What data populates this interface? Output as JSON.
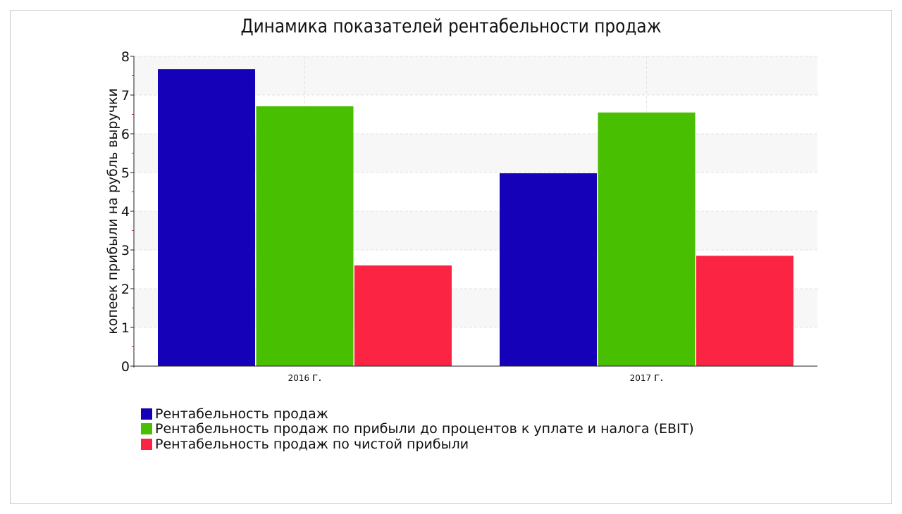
{
  "chart_data": {
    "type": "bar",
    "title": "Динамика показателей рентабельности продаж",
    "xlabel": "",
    "ylabel": "копеек прибыли на рубль выручки",
    "ylim": [
      0,
      8
    ],
    "yticks": [
      "0",
      "1",
      "2",
      "3",
      "4",
      "5",
      "6",
      "7",
      "8"
    ],
    "categories": [
      {
        "year": "2016",
        "suffix": "г."
      },
      {
        "year": "2017",
        "suffix": "г."
      }
    ],
    "series": [
      {
        "name": "Рентабельность продаж",
        "color": "#1401b8",
        "values": [
          7.67,
          4.98
        ]
      },
      {
        "name": "Рентабельность продаж по прибыли до процентов к уплате и налога (EBIT)",
        "color": "#48bf00",
        "values": [
          6.71,
          6.55
        ]
      },
      {
        "name": "Рентабельность продаж по чистой прибыли",
        "color": "#fc2443",
        "values": [
          2.6,
          2.85
        ]
      }
    ],
    "grid": true,
    "legend_position": "bottom-left"
  }
}
